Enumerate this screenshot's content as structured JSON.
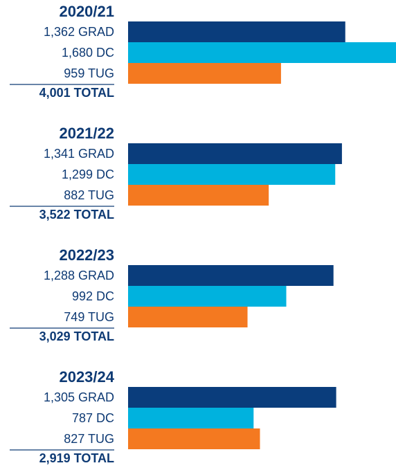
{
  "chart_data": {
    "type": "bar",
    "categories": [
      "2020/21",
      "2021/22",
      "2022/23",
      "2023/24"
    ],
    "series": [
      {
        "name": "GRAD",
        "color": "#0a3d7c",
        "values": [
          1362,
          1341,
          1288,
          1305
        ],
        "value_labels": [
          "1,362 GRAD",
          "1,341 GRAD",
          "1,288 GRAD",
          "1,305 GRAD"
        ]
      },
      {
        "name": "DC",
        "color": "#00b2de",
        "values": [
          1680,
          1299,
          992,
          787
        ],
        "value_labels": [
          "1,680 DC",
          "1,299 DC",
          "992 DC",
          "787 DC"
        ]
      },
      {
        "name": "TUG",
        "color": "#f47920",
        "values": [
          959,
          882,
          749,
          827
        ],
        "value_labels": [
          "959 TUG",
          "882 TUG",
          "749 TUG",
          "827 TUG"
        ]
      }
    ],
    "totals": [
      4001,
      3522,
      3029,
      2919
    ],
    "total_labels": [
      "4,001 TOTAL",
      "3,522 TOTAL",
      "3,029 TOTAL",
      "2,919 TOTAL"
    ],
    "xlim": [
      0,
      1680
    ]
  }
}
